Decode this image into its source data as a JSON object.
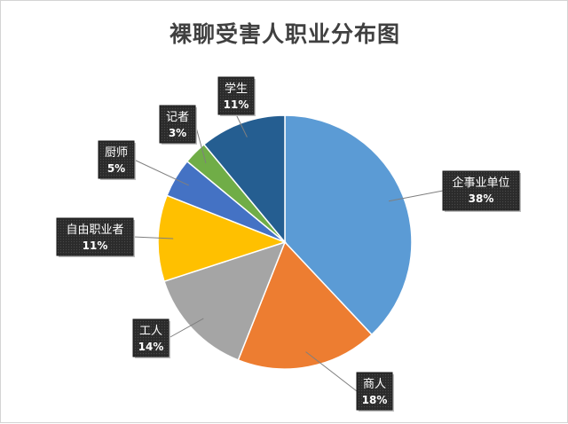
{
  "chart_data": {
    "type": "pie",
    "title": "裸聊受害人职业分布图",
    "categories": [
      "企事业单位",
      "商人",
      "工人",
      "自由职业者",
      "厨师",
      "记者",
      "学生"
    ],
    "values": [
      38,
      18,
      14,
      11,
      5,
      3,
      11
    ],
    "value_labels": [
      "38%",
      "18%",
      "14%",
      "11%",
      "5%",
      "3%",
      "11%"
    ],
    "colors": [
      "#5b9bd5",
      "#ed7d31",
      "#a5a5a5",
      "#ffc000",
      "#4472c4",
      "#70ad47",
      "#255e91"
    ],
    "start_angle_deg": 0,
    "direction": "clockwise",
    "legend": "none",
    "label_style": "callout"
  }
}
